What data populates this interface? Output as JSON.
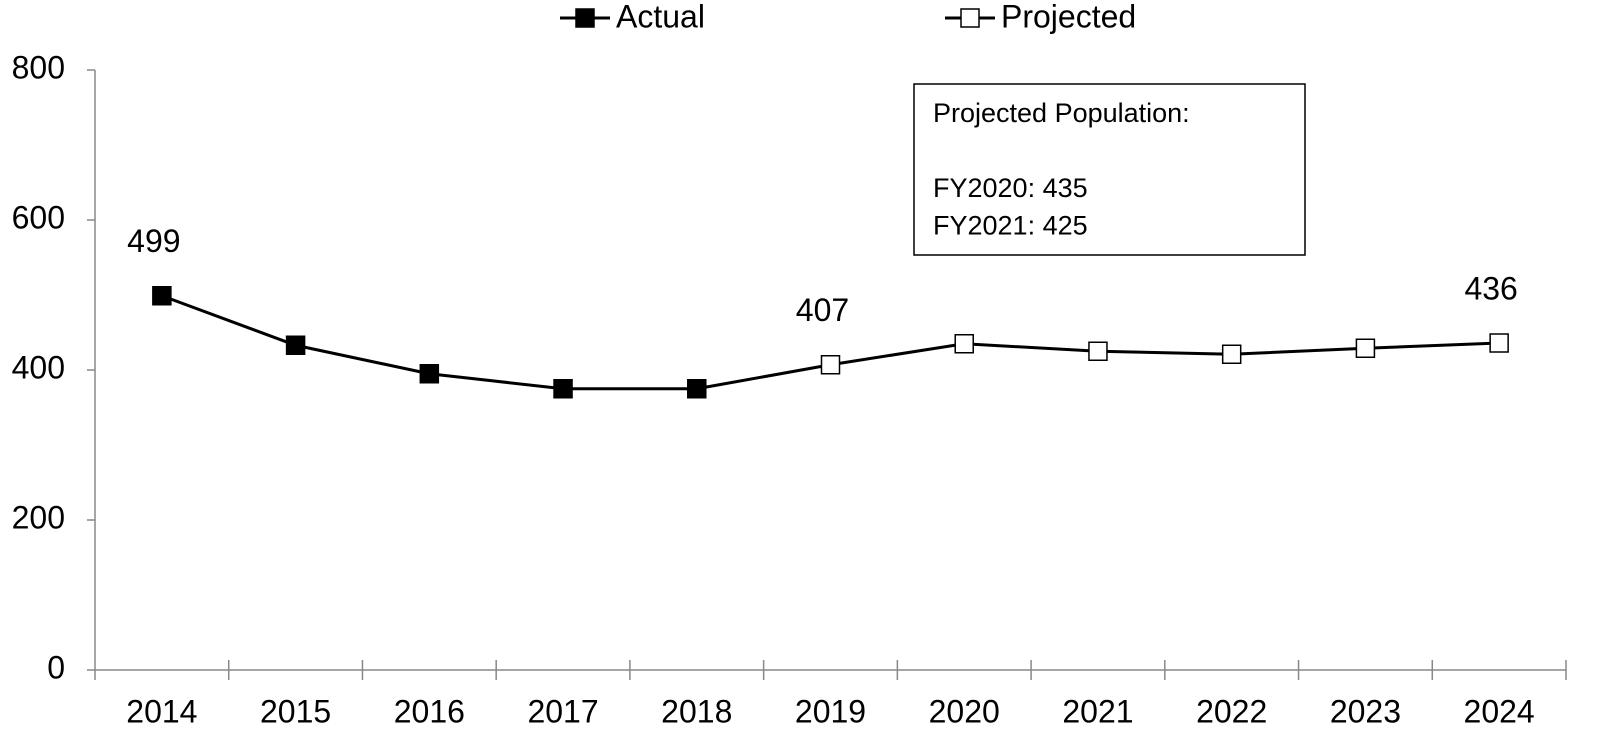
{
  "chart_data": {
    "type": "line",
    "categories": [
      "2014",
      "2015",
      "2016",
      "2017",
      "2018",
      "2019",
      "2020",
      "2021",
      "2022",
      "2023",
      "2024"
    ],
    "series": [
      {
        "name": "Actual",
        "color": "#000000",
        "marker_fill": "#000000",
        "values": [
          499,
          433,
          395,
          375,
          375,
          null,
          null,
          null,
          null,
          null,
          null
        ],
        "label_indices": [
          0
        ]
      },
      {
        "name": "Projected",
        "color": "#000000",
        "marker_fill": "#ffffff",
        "values": [
          null,
          null,
          null,
          null,
          null,
          407,
          435,
          425,
          421,
          429,
          436
        ],
        "label_indices": [
          5,
          10
        ]
      }
    ],
    "ylim": [
      0,
      800
    ],
    "yticks": [
      0,
      200,
      400,
      600,
      800
    ],
    "grid": false,
    "legend": "top",
    "annotation": [
      "Projected Population:",
      "",
      "FY2020: 435",
      "FY2021: 425"
    ]
  }
}
